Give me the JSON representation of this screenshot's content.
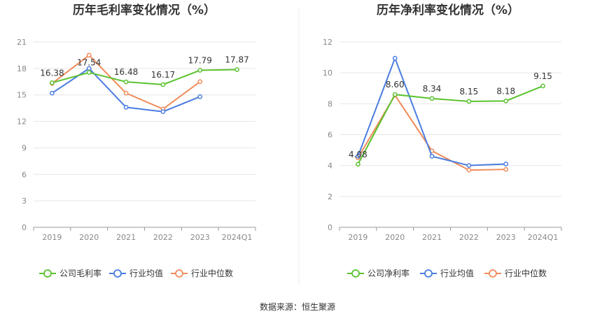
{
  "chart_data": [
    {
      "type": "line",
      "title": "历年毛利率变化情况（%）",
      "categories": [
        "2019",
        "2020",
        "2021",
        "2022",
        "2023",
        "2024Q1"
      ],
      "y_ticks": [
        0,
        3,
        6,
        9,
        12,
        15,
        18,
        21
      ],
      "ylim": [
        0,
        21
      ],
      "grid": true,
      "legend_position": "bottom",
      "series": [
        {
          "name": "公司毛利率",
          "color": "#5bc22f",
          "values": [
            16.38,
            17.54,
            16.48,
            16.17,
            17.79,
            17.87
          ],
          "labels": [
            "16.38",
            "17.54",
            "16.48",
            "16.17",
            "17.79",
            "17.87"
          ]
        },
        {
          "name": "行业均值",
          "color": "#4a7de0",
          "values": [
            15.2,
            18.0,
            13.6,
            13.1,
            14.8,
            null
          ]
        },
        {
          "name": "行业中位数",
          "color": "#f08c5a",
          "values": [
            16.3,
            19.5,
            15.2,
            13.4,
            16.5,
            null
          ]
        }
      ]
    },
    {
      "type": "line",
      "title": "历年净利率变化情况（%）",
      "categories": [
        "2019",
        "2020",
        "2021",
        "2022",
        "2023",
        "2024Q1"
      ],
      "y_ticks": [
        0,
        2,
        4,
        6,
        8,
        10,
        12
      ],
      "ylim": [
        0,
        12
      ],
      "grid": true,
      "legend_position": "bottom",
      "series": [
        {
          "name": "公司净利率",
          "color": "#5bc22f",
          "values": [
            4.08,
            8.6,
            8.34,
            8.15,
            8.18,
            9.15
          ],
          "labels": [
            "4.08",
            "8.60",
            "8.34",
            "8.15",
            "8.18",
            "9.15"
          ]
        },
        {
          "name": "行业均值",
          "color": "#4a7de0",
          "values": [
            4.6,
            10.95,
            4.6,
            4.0,
            4.1,
            null
          ]
        },
        {
          "name": "行业中位数",
          "color": "#f08c5a",
          "values": [
            4.5,
            8.55,
            4.95,
            3.7,
            3.75,
            null
          ]
        }
      ]
    }
  ],
  "footer": {
    "source": "数据来源：恒生聚源"
  }
}
